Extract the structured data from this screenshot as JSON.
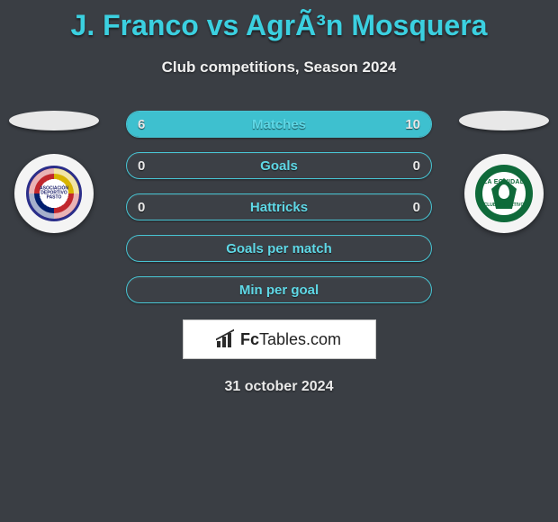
{
  "header": {
    "title": "J. Franco vs AgrÃ³n Mosquera",
    "subtitle": "Club competitions, Season 2024"
  },
  "players": {
    "left": {
      "badge_label_top": "ASOCIACIÓN",
      "badge_label_bottom": "DEPORTIVO PASTO"
    },
    "right": {
      "badge_label_top": "LA EQUIDAD",
      "badge_label_bottom": "CLUB DEPORTIVO"
    }
  },
  "stats": {
    "colors": {
      "bar_fill": "#3ec0cf",
      "row_border": "#48c5d4",
      "row_bg": "#3c4046",
      "label": "#5fd8e6",
      "value": "#e8e8e8",
      "page_bg": "#3a3e44"
    },
    "rows": [
      {
        "label": "Matches",
        "left": "6",
        "right": "10",
        "left_fill_pct": 37,
        "right_fill_pct": 63
      },
      {
        "label": "Goals",
        "left": "0",
        "right": "0",
        "left_fill_pct": 0,
        "right_fill_pct": 0
      },
      {
        "label": "Hattricks",
        "left": "0",
        "right": "0",
        "left_fill_pct": 0,
        "right_fill_pct": 0
      },
      {
        "label": "Goals per match",
        "left": "",
        "right": "",
        "left_fill_pct": 0,
        "right_fill_pct": 0
      },
      {
        "label": "Min per goal",
        "left": "",
        "right": "",
        "left_fill_pct": 0,
        "right_fill_pct": 0
      }
    ]
  },
  "brand": {
    "text_bold": "Fc",
    "text_rest": "Tables.com"
  },
  "footer": {
    "date": "31 october 2024"
  }
}
